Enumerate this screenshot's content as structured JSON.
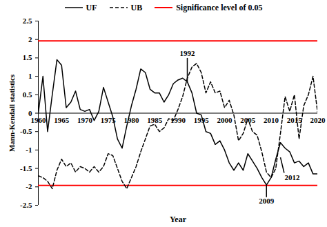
{
  "chart_data": {
    "type": "line",
    "x_label": "Year",
    "y_label": "Mann-Kendall statistics",
    "x": [
      1960,
      1961,
      1962,
      1963,
      1964,
      1965,
      1966,
      1967,
      1968,
      1969,
      1970,
      1971,
      1972,
      1973,
      1974,
      1975,
      1976,
      1977,
      1978,
      1979,
      1980,
      1981,
      1982,
      1983,
      1984,
      1985,
      1986,
      1987,
      1988,
      1989,
      1990,
      1991,
      1992,
      1993,
      1994,
      1995,
      1996,
      1997,
      1998,
      1999,
      2000,
      2001,
      2002,
      2003,
      2004,
      2005,
      2006,
      2007,
      2008,
      2009,
      2010,
      2011,
      2012,
      2013,
      2014,
      2015,
      2016,
      2017,
      2018,
      2019,
      2020
    ],
    "series": [
      {
        "name": "UF",
        "color": "#000000",
        "line_style": "solid",
        "values": [
          0,
          1.0,
          -0.5,
          0.5,
          1.45,
          1.3,
          0.15,
          0.3,
          0.6,
          0.1,
          0.05,
          0.1,
          -0.2,
          0.05,
          0.7,
          0.3,
          -0.1,
          -0.7,
          -0.95,
          -0.35,
          0.2,
          0.65,
          1.2,
          1.1,
          0.65,
          0.55,
          0.55,
          0.3,
          0.5,
          0.8,
          0.9,
          0.95,
          0.85,
          0.55,
          0.0,
          -0.05,
          -0.5,
          -0.55,
          -0.85,
          -0.75,
          -1.0,
          -1.35,
          -1.55,
          -1.35,
          -1.55,
          -1.1,
          -1.3,
          -1.5,
          -1.75,
          -1.95,
          -1.75,
          -1.25,
          -0.8,
          -0.95,
          -1.05,
          -1.35,
          -1.3,
          -1.45,
          -1.35,
          -1.65,
          -1.65
        ]
      },
      {
        "name": "UB",
        "color": "#000000",
        "line_style": "dashed",
        "values": [
          -1.7,
          -1.75,
          -1.85,
          -2.05,
          -1.55,
          -1.25,
          -1.45,
          -1.35,
          -1.6,
          -1.45,
          -1.5,
          -1.6,
          -1.45,
          -1.6,
          -1.45,
          -1.1,
          -1.15,
          -1.5,
          -1.85,
          -2.05,
          -1.75,
          -1.45,
          -1.05,
          -0.7,
          -0.35,
          -0.3,
          -0.5,
          -0.4,
          -0.15,
          -0.2,
          0.1,
          0.45,
          0.95,
          1.25,
          1.35,
          1.1,
          0.55,
          0.85,
          0.55,
          0.6,
          0.15,
          0.35,
          -0.05,
          -0.75,
          -0.55,
          -0.15,
          -0.5,
          -0.6,
          -1.05,
          -1.6,
          -1.75,
          -1.5,
          -0.55,
          0.45,
          0.05,
          0.5,
          -0.7,
          0.2,
          0.5,
          1.0,
          0.0
        ]
      }
    ],
    "reference_lines": {
      "name": "Significance level of 0.05",
      "color": "#ff0000",
      "values": [
        1.96,
        -1.96
      ]
    },
    "annotations": [
      {
        "text": "1992",
        "x": 1992,
        "y": 1.62,
        "line": [
          1992,
          0.85,
          1992,
          1.5
        ]
      },
      {
        "text": "2009",
        "x": 2009,
        "y": -2.38,
        "line": [
          2009,
          -1.95,
          2009,
          -2.28
        ]
      },
      {
        "text": "2012",
        "x": 2014.5,
        "y": -1.75,
        "line": [
          2012,
          -1.2,
          2012.8,
          -1.62
        ]
      }
    ],
    "xlim": [
      1960,
      2020
    ],
    "xticks": [
      1960,
      1965,
      1970,
      1975,
      1980,
      1985,
      1990,
      1995,
      2000,
      2005,
      2010,
      2015,
      2020
    ],
    "ylim": [
      -2.5,
      2.5
    ],
    "yticks": [
      -2.5,
      -2,
      -1.5,
      -1,
      -0.5,
      0,
      0.5,
      1,
      1.5,
      2,
      2.5
    ],
    "grid": false,
    "legend": "top"
  }
}
